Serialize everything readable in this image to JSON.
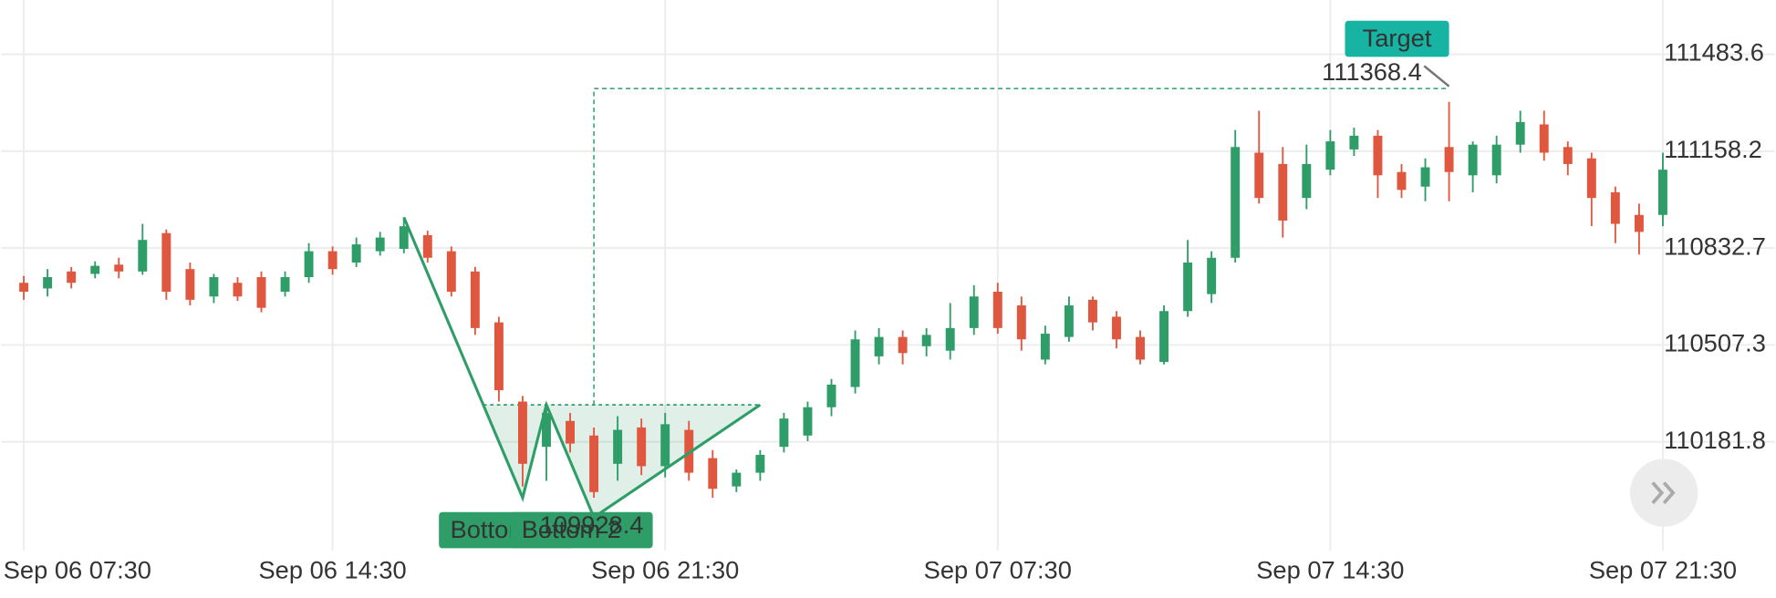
{
  "chart_data": {
    "type": "candlestick",
    "categories": [
      "Sep 06 07:30",
      null,
      null,
      null,
      null,
      null,
      null,
      null,
      null,
      null,
      null,
      null,
      null,
      "Sep 06 14:30",
      null,
      null,
      null,
      null,
      null,
      null,
      null,
      null,
      null,
      null,
      null,
      null,
      null,
      "Sep 06 21:30",
      null,
      null,
      null,
      null,
      null,
      null,
      null,
      null,
      null,
      null,
      null,
      null,
      null,
      "Sep 07 07:30",
      null,
      null,
      null,
      null,
      null,
      null,
      null,
      null,
      null,
      null,
      null,
      null,
      null,
      "Sep 07 14:30",
      null,
      null,
      null,
      null,
      null,
      null,
      null,
      null,
      null,
      null,
      null,
      null,
      null,
      "Sep 07 21:30"
    ],
    "open": [
      110716,
      110697,
      110754,
      110746,
      110777,
      110754,
      110883,
      110762,
      110670,
      110716,
      110735,
      110686,
      110735,
      110822,
      110784,
      110822,
      110830,
      110876,
      110822,
      110754,
      110583,
      110317,
      110165,
      110252,
      110203,
      110108,
      110230,
      110100,
      110222,
      110127,
      110032,
      110078,
      110165,
      110203,
      110298,
      110366,
      110469,
      110534,
      110503,
      110488,
      110564,
      110686,
      110640,
      110458,
      110534,
      110659,
      110602,
      110534,
      110450,
      110621,
      110678,
      110800,
      111153,
      111115,
      111001,
      111096,
      111164,
      111210,
      111088,
      111039,
      111172,
      111077,
      111077,
      111180,
      111248,
      111172,
      111134,
      111020,
      110944,
      110944
    ],
    "high": [
      110739,
      110762,
      110769,
      110788,
      110800,
      110914,
      110895,
      110784,
      110746,
      110735,
      110754,
      110754,
      110849,
      110838,
      110868,
      110887,
      110936,
      110891,
      110838,
      110769,
      110602,
      110336,
      110306,
      110279,
      110230,
      110268,
      110260,
      110279,
      110252,
      110154,
      110089,
      110154,
      110279,
      110317,
      110393,
      110556,
      110564,
      110556,
      110564,
      110648,
      110708,
      110716,
      110670,
      110572,
      110670,
      110670,
      110621,
      110556,
      110640,
      110860,
      110822,
      111229,
      111294,
      111172,
      111180,
      111229,
      111237,
      111229,
      111115,
      111134,
      111324,
      111191,
      111210,
      111294,
      111294,
      111191,
      111153,
      111039,
      110982,
      111153
    ],
    "low": [
      110659,
      110670,
      110697,
      110731,
      110731,
      110743,
      110659,
      110640,
      110648,
      110655,
      110617,
      110670,
      110716,
      110743,
      110769,
      110807,
      110815,
      110784,
      110670,
      110541,
      110317,
      110032,
      110051,
      110146,
      109994,
      110051,
      110070,
      110062,
      110051,
      109994,
      110013,
      110051,
      110146,
      110184,
      110268,
      110344,
      110442,
      110442,
      110469,
      110458,
      110541,
      110545,
      110488,
      110442,
      110518,
      110556,
      110496,
      110442,
      110442,
      110602,
      110648,
      110784,
      110982,
      110868,
      110963,
      111077,
      111142,
      111001,
      111001,
      110990,
      110990,
      111020,
      111050,
      111153,
      111126,
      111077,
      110906,
      110849,
      110811,
      110906
    ],
    "close": [
      110686,
      110735,
      110716,
      110773,
      110754,
      110860,
      110686,
      110659,
      110735,
      110670,
      110632,
      110735,
      110822,
      110762,
      110845,
      110868,
      110906,
      110800,
      110686,
      110564,
      110355,
      110108,
      110279,
      110176,
      110013,
      110222,
      110100,
      110241,
      110078,
      110024,
      110078,
      110138,
      110260,
      110298,
      110374,
      110526,
      110534,
      110480,
      110541,
      110564,
      110670,
      110564,
      110526,
      110545,
      110640,
      110583,
      110526,
      110458,
      110621,
      110784,
      110800,
      111172,
      111001,
      110925,
      111115,
      111191,
      111210,
      111077,
      111028,
      111104,
      111088,
      111180,
      111180,
      111256,
      111153,
      111115,
      111001,
      110914,
      110887,
      111096
    ],
    "up_color": "#2e9d67",
    "down_color": "#e0573f",
    "ylim": [
      109816.7,
      111665.9
    ],
    "yticks": [
      110181.8,
      110507.3,
      110832.7,
      111158.2,
      111483.6
    ],
    "grid": true,
    "pattern": {
      "x": [
        16,
        21,
        22,
        24,
        31
      ],
      "values": [
        110936,
        109994,
        110306,
        109928.4,
        110306
      ],
      "labels": [
        "Bottom",
        "Bottom 2"
      ]
    },
    "target": {
      "label": "Target",
      "value": 111368.4,
      "x": 60
    }
  }
}
